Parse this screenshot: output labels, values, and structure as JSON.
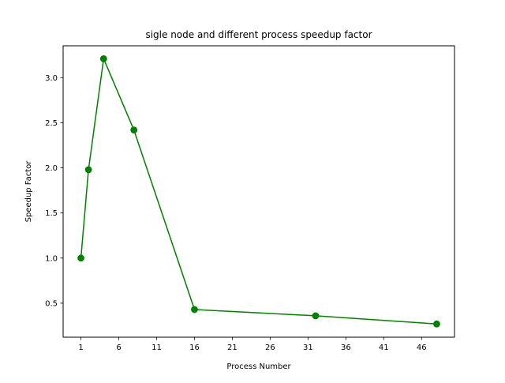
{
  "chart_data": {
    "type": "line",
    "title": "sigle node and different process speedup factor",
    "xlabel": "Process Number",
    "ylabel": "Speedup Factor",
    "xlim": [
      -1.35,
      50.35
    ],
    "ylim": [
      0.123,
      3.353
    ],
    "xticks": [
      1,
      6,
      11,
      16,
      21,
      26,
      31,
      36,
      41,
      46
    ],
    "yticks": [
      0.5,
      1.0,
      1.5,
      2.0,
      2.5,
      3.0
    ],
    "ytick_labels": [
      "0.5",
      "1.0",
      "1.5",
      "2.0",
      "2.5",
      "3.0"
    ],
    "grid": false,
    "series": [
      {
        "color": "#008000",
        "marker": "circle",
        "x": [
          1,
          2,
          4,
          8,
          16,
          32,
          48
        ],
        "y": [
          1.0,
          1.98,
          3.21,
          2.42,
          0.43,
          0.36,
          0.27
        ]
      }
    ]
  }
}
